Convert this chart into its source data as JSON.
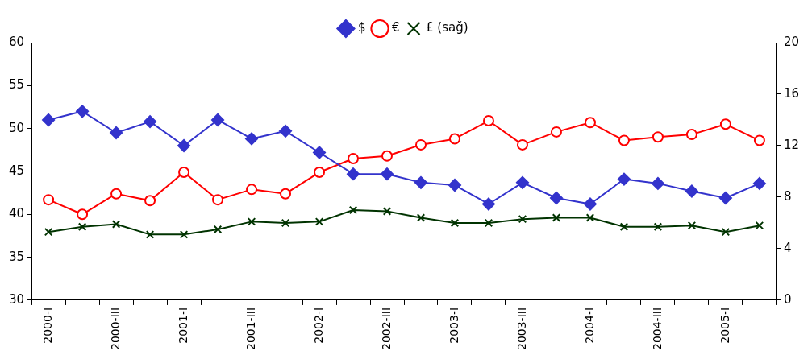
{
  "chart_data": {
    "type": "line",
    "categories": [
      "2000-I",
      null,
      "2000-III",
      null,
      "2001-I",
      null,
      "2001-III",
      null,
      "2002-I",
      null,
      "2002-III",
      null,
      "2003-I",
      null,
      "2003-III",
      null,
      "2004-I",
      null,
      "2004-III",
      null,
      "2005-I",
      null
    ],
    "series": [
      {
        "name": "$",
        "color": "#3333cc",
        "marker": "diamond",
        "values": [
          51.0,
          52.0,
          49.5,
          50.8,
          48.0,
          51.0,
          48.8,
          49.7,
          47.2,
          44.7,
          44.7,
          43.7,
          43.4,
          41.2,
          43.7,
          41.9,
          41.2,
          44.1,
          43.6,
          42.7,
          41.9,
          43.6
        ]
      },
      {
        "name": "€",
        "color": "#ff0000",
        "marker": "circle",
        "values": [
          41.7,
          40.0,
          42.4,
          41.6,
          44.9,
          41.7,
          42.9,
          42.4,
          44.9,
          46.5,
          46.8,
          48.1,
          48.8,
          50.9,
          48.1,
          49.6,
          50.7,
          48.6,
          49.0,
          49.3,
          50.5,
          48.6
        ]
      },
      {
        "name": "£ (sağ)",
        "color": "#003300",
        "marker": "cross",
        "axis": "y2",
        "values": [
          5.3,
          5.7,
          5.9,
          5.1,
          5.1,
          5.5,
          6.1,
          6.0,
          6.1,
          7.0,
          6.9,
          6.4,
          6.0,
          6.0,
          6.3,
          6.4,
          6.4,
          5.7,
          5.7,
          5.8,
          5.3,
          5.8
        ]
      }
    ],
    "ylim": [
      30,
      60
    ],
    "yticks": [
      30,
      35,
      40,
      45,
      50,
      55,
      60
    ],
    "y2lim": [
      0,
      20
    ],
    "y2ticks": [
      0,
      4,
      8,
      12,
      16,
      20
    ],
    "grid": false,
    "legend": "top",
    "line_style": "solid"
  }
}
